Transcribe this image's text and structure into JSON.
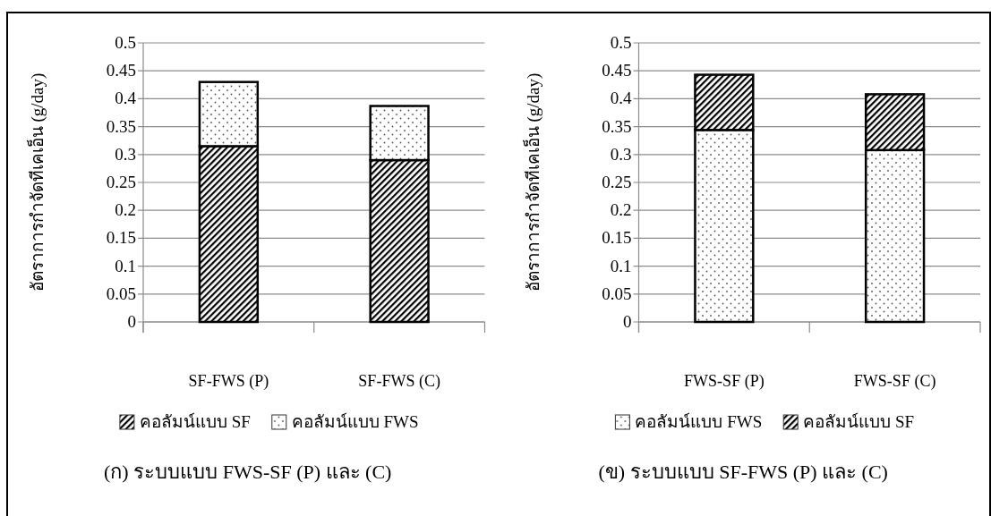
{
  "chart_data": [
    {
      "type": "bar",
      "stacked": true,
      "title": "(ก) ระบบแบบ FWS-SF (P) และ (C)",
      "ylabel": "อัตราการกำจัดทีเคเอ็น (g/day)",
      "categories": [
        "SF-FWS (P)",
        "SF-FWS (C)"
      ],
      "series": [
        {
          "name": "คอลัมน์แบบ SF",
          "color": "#000000",
          "values": [
            0.315,
            0.29
          ]
        },
        {
          "name": "คอลัมน์แบบ FWS",
          "color": "#ffffff",
          "values": [
            0.115,
            0.097
          ]
        }
      ],
      "ylim": [
        0,
        0.5
      ],
      "yticks": [
        0,
        0.05,
        0.1,
        0.15,
        0.2,
        0.25,
        0.3,
        0.35,
        0.4,
        0.45,
        0.5
      ],
      "grid": "y",
      "legend": "bottom"
    },
    {
      "type": "bar",
      "stacked": true,
      "title": "(ข) ระบบแบบ SF-FWS (P) และ (C)",
      "ylabel": "อัตราการกำจัดทีเคเอ็น (g/day)",
      "categories": [
        "FWS-SF (P)",
        "FWS-SF (C)"
      ],
      "series": [
        {
          "name": "คอลัมน์แบบ FWS",
          "color": "#ffffff",
          "values": [
            0.344,
            0.308
          ]
        },
        {
          "name": "คอลัมน์แบบ SF",
          "color": "#000000",
          "values": [
            0.099,
            0.1
          ]
        }
      ],
      "ylim": [
        0,
        0.5
      ],
      "yticks": [
        0,
        0.05,
        0.1,
        0.15,
        0.2,
        0.25,
        0.3,
        0.35,
        0.4,
        0.45,
        0.5
      ],
      "grid": "y",
      "legend": "bottom"
    }
  ]
}
